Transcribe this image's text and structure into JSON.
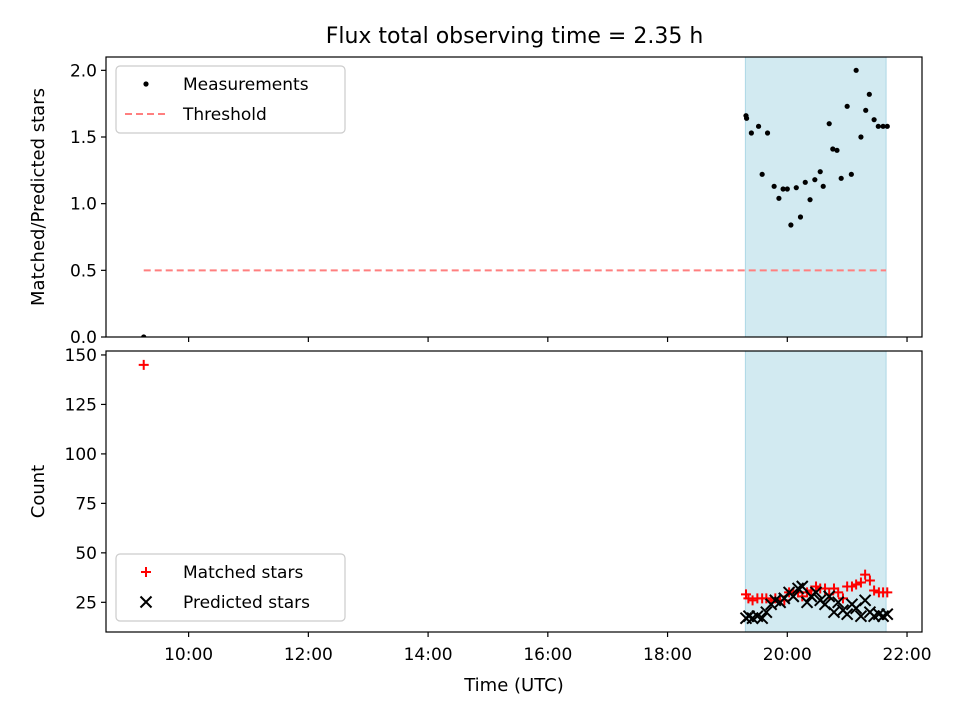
{
  "figure_title": "Flux total observing time = 2.35 h",
  "colors": {
    "background": "#ffffff",
    "shade": "#add8e6",
    "threshold": "#ff7f7f",
    "matched": "#ff0000",
    "predicted": "#000000",
    "measurement": "#000000"
  },
  "chart_data": [
    {
      "type": "scatter",
      "panel": "top",
      "title": "",
      "xlabel": "",
      "ylabel": "Matched/Predicted stars",
      "xlim_hours": [
        8.62,
        22.25
      ],
      "ylim": [
        0,
        2.1
      ],
      "yticks": [
        "0.0",
        "0.5",
        "1.0",
        "1.5",
        "2.0"
      ],
      "ytick_values": [
        0,
        0.5,
        1.0,
        1.5,
        2.0
      ],
      "grid": false,
      "legend_position": "top-left",
      "shaded_interval_hours": [
        19.3,
        21.65
      ],
      "series": [
        {
          "name": "Measurements",
          "kind": "scatter",
          "x": [
            9.25,
            19.31,
            19.32,
            19.4,
            19.52,
            19.58,
            19.67,
            19.78,
            19.86,
            19.93,
            20.0,
            20.06,
            20.15,
            20.22,
            20.3,
            20.38,
            20.46,
            20.55,
            20.6,
            20.7,
            20.76,
            20.83,
            20.9,
            21.0,
            21.07,
            21.15,
            21.23,
            21.31,
            21.37,
            21.45,
            21.52,
            21.6,
            21.67
          ],
          "y": [
            0.0,
            1.66,
            1.64,
            1.53,
            1.58,
            1.22,
            1.53,
            1.13,
            1.04,
            1.11,
            1.11,
            0.84,
            1.12,
            0.9,
            1.16,
            1.03,
            1.18,
            1.24,
            1.13,
            1.6,
            1.41,
            1.4,
            1.19,
            1.73,
            1.22,
            2.0,
            1.5,
            1.7,
            1.82,
            1.63,
            1.58,
            1.58,
            1.58
          ]
        },
        {
          "name": "Threshold",
          "kind": "dashed-line",
          "x": [
            9.25,
            21.65
          ],
          "y": [
            0.5,
            0.5
          ]
        }
      ]
    },
    {
      "type": "scatter",
      "panel": "bottom",
      "title": "",
      "xlabel": "Time (UTC)",
      "ylabel": "Count",
      "xlim_hours": [
        8.62,
        22.25
      ],
      "ylim": [
        10,
        152
      ],
      "xticks": [
        "10:00",
        "12:00",
        "14:00",
        "16:00",
        "18:00",
        "20:00",
        "22:00"
      ],
      "xtick_values": [
        10,
        12,
        14,
        16,
        18,
        20,
        22
      ],
      "yticks": [
        "25",
        "50",
        "75",
        "100",
        "125",
        "150"
      ],
      "ytick_values": [
        25,
        50,
        75,
        100,
        125,
        150
      ],
      "grid": false,
      "legend_position": "bottom-left",
      "shaded_interval_hours": [
        19.3,
        21.65
      ],
      "series": [
        {
          "name": "Matched stars",
          "kind": "plus",
          "x": [
            9.25,
            19.31,
            19.35,
            19.42,
            19.5,
            19.58,
            19.65,
            19.73,
            19.8,
            19.88,
            19.95,
            20.03,
            20.1,
            20.18,
            20.25,
            20.33,
            20.4,
            20.48,
            20.55,
            20.63,
            20.7,
            20.78,
            20.85,
            20.93,
            21.0,
            21.08,
            21.15,
            21.23,
            21.3,
            21.38,
            21.45,
            21.53,
            21.6,
            21.67
          ],
          "y": [
            145,
            29,
            27,
            26,
            27,
            27,
            27,
            26,
            27,
            26,
            26,
            30,
            30,
            30,
            28,
            30,
            31,
            33,
            32,
            32,
            29,
            32,
            30,
            27,
            33,
            33,
            34,
            35,
            39,
            36,
            31,
            30,
            30,
            30
          ]
        },
        {
          "name": "Predicted stars",
          "kind": "x",
          "x": [
            19.31,
            19.36,
            19.42,
            19.5,
            19.58,
            19.65,
            19.73,
            19.8,
            19.88,
            19.95,
            20.03,
            20.1,
            20.18,
            20.25,
            20.33,
            20.4,
            20.48,
            20.55,
            20.63,
            20.7,
            20.78,
            20.85,
            20.93,
            21.0,
            21.08,
            21.15,
            21.23,
            21.3,
            21.38,
            21.45,
            21.53,
            21.6,
            21.67
          ],
          "y": [
            17,
            18,
            17,
            18,
            17,
            20,
            24,
            26,
            25,
            27,
            30,
            28,
            32,
            33,
            25,
            28,
            30,
            26,
            24,
            28,
            20,
            25,
            21,
            19,
            24,
            22,
            18,
            26,
            20,
            18,
            19,
            18,
            19
          ]
        }
      ]
    }
  ]
}
